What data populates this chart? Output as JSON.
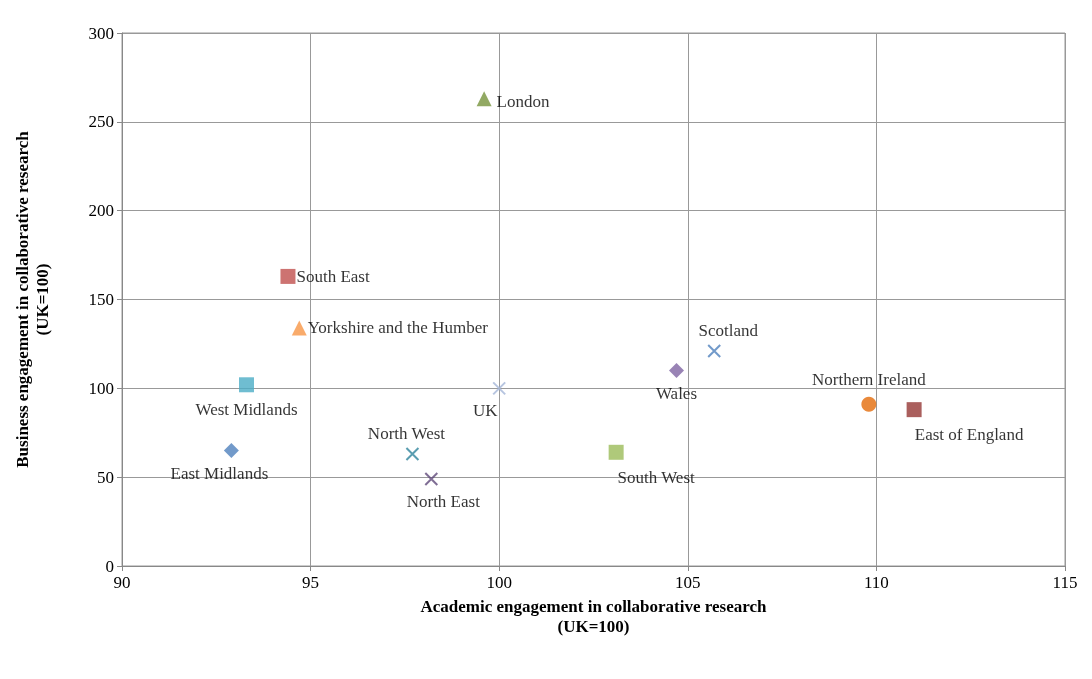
{
  "chart_data": {
    "type": "scatter",
    "xlabel": "Academic engagement in collaborative research\n(UK=100)",
    "ylabel": "Business engagement in collaborative research\n(UK=100)",
    "xlim": [
      90,
      115
    ],
    "xticks": [
      90,
      95,
      100,
      105,
      110,
      115
    ],
    "ylim": [
      0,
      300
    ],
    "yticks": [
      0,
      50,
      100,
      150,
      200,
      250,
      300
    ],
    "grid": true,
    "legend": false,
    "series": [
      {
        "name": "London",
        "color": "#77933c",
        "marker": "triangle",
        "x": [
          99.6
        ],
        "values": [
          263
        ]
      },
      {
        "name": "South East",
        "color": "#c0504d",
        "marker": "square",
        "x": [
          94.4
        ],
        "values": [
          163
        ]
      },
      {
        "name": "Yorkshire and the Humber",
        "color": "#f79646",
        "marker": "triangle",
        "x": [
          94.7
        ],
        "values": [
          134
        ]
      },
      {
        "name": "West Midlands",
        "color": "#4bacc6",
        "marker": "square",
        "x": [
          93.3
        ],
        "values": [
          102
        ]
      },
      {
        "name": "East Midlands",
        "color": "#4f81bd",
        "marker": "diamond",
        "x": [
          92.9
        ],
        "values": [
          65
        ]
      },
      {
        "name": "North West",
        "color": "#31859c",
        "marker": "cross",
        "x": [
          97.7
        ],
        "values": [
          63
        ]
      },
      {
        "name": "North East",
        "color": "#604a7b",
        "marker": "cross",
        "x": [
          98.2
        ],
        "values": [
          49
        ]
      },
      {
        "name": "UK",
        "color": "#a5b6d8",
        "marker": "cross",
        "x": [
          100
        ],
        "values": [
          100
        ]
      },
      {
        "name": "South West",
        "color": "#9bbb59",
        "marker": "square",
        "x": [
          103.1
        ],
        "values": [
          64
        ]
      },
      {
        "name": "Wales",
        "color": "#8064a2",
        "marker": "diamond",
        "x": [
          104.7
        ],
        "values": [
          110
        ]
      },
      {
        "name": "Scotland",
        "color": "#4f81bd",
        "marker": "cross",
        "x": [
          105.7
        ],
        "values": [
          121
        ]
      },
      {
        "name": "Northern Ireland",
        "color": "#e46c0a",
        "marker": "circle",
        "x": [
          109.8
        ],
        "values": [
          91
        ]
      },
      {
        "name": "East of England",
        "color": "#953735",
        "marker": "square",
        "x": [
          111
        ],
        "values": [
          88
        ]
      }
    ]
  }
}
